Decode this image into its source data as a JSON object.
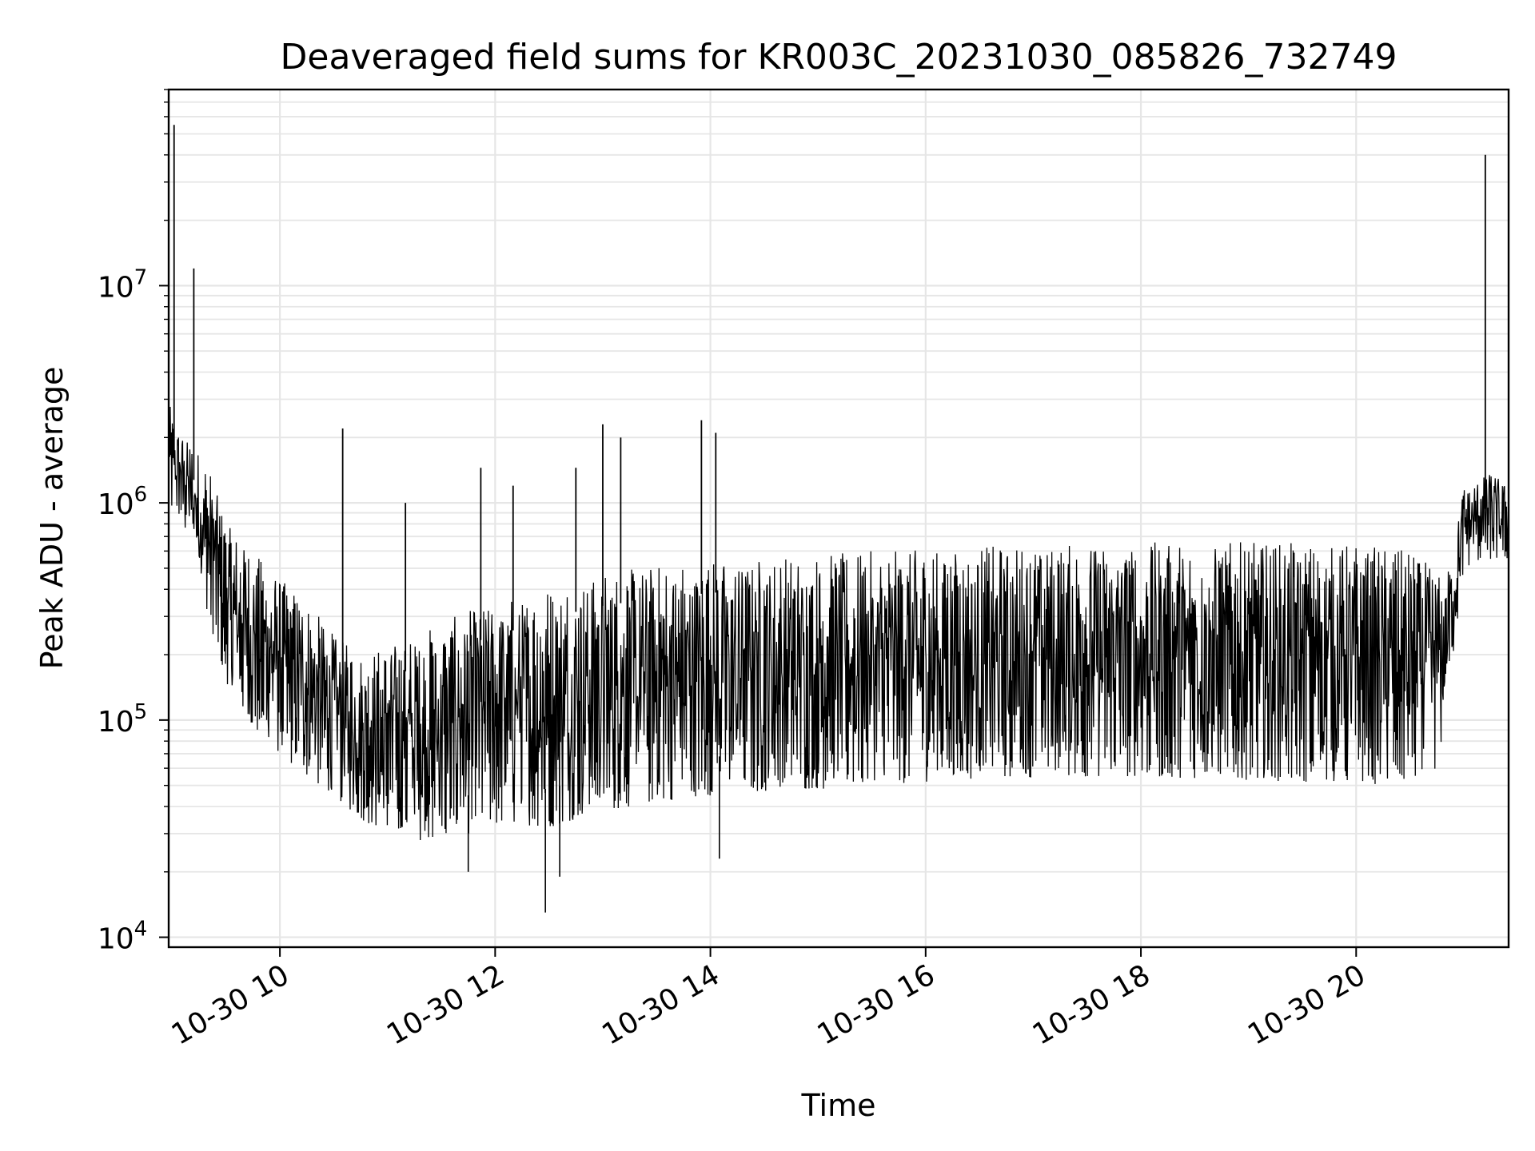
{
  "chart_data": {
    "type": "line",
    "title": "Deaveraged field sums for KR003C_20231030_085826_732749",
    "xlabel": "Time",
    "ylabel": "Peak ADU - average",
    "yscale": "log",
    "ylim": [
      9000,
      80000000
    ],
    "xlim": [
      "2023-10-30 08:58",
      "2023-10-30 21:25"
    ],
    "grid": true,
    "line_color": "#000000",
    "x_ticks": [
      {
        "t": "2023-10-30 10:00",
        "label": "10-30 10"
      },
      {
        "t": "2023-10-30 12:00",
        "label": "10-30 12"
      },
      {
        "t": "2023-10-30 14:00",
        "label": "10-30 14"
      },
      {
        "t": "2023-10-30 16:00",
        "label": "10-30 16"
      },
      {
        "t": "2023-10-30 18:00",
        "label": "10-30 18"
      },
      {
        "t": "2023-10-30 20:00",
        "label": "10-30 20"
      }
    ],
    "y_ticks": [
      {
        "value": 10000,
        "base": "10",
        "exp": "4"
      },
      {
        "value": 100000,
        "base": "10",
        "exp": "5"
      },
      {
        "value": 1000000,
        "base": "10",
        "exp": "6"
      },
      {
        "value": 10000000,
        "base": "10",
        "exp": "7"
      }
    ],
    "series": [
      {
        "envelope_note_removed": true,
        "x": [
          "2023-10-30 08:58",
          "2023-10-30 09:00",
          "2023-10-30 09:03",
          "2023-10-30 09:08",
          "2023-10-30 09:15",
          "2023-10-30 09:20",
          "2023-10-30 09:30",
          "2023-10-30 09:45",
          "2023-10-30 10:00",
          "2023-10-30 10:15",
          "2023-10-30 10:30",
          "2023-10-30 10:45",
          "2023-10-30 11:00",
          "2023-10-30 11:15",
          "2023-10-30 11:30",
          "2023-10-30 11:45",
          "2023-10-30 12:00",
          "2023-10-30 12:15",
          "2023-10-30 12:30",
          "2023-10-30 12:45",
          "2023-10-30 13:00",
          "2023-10-30 13:30",
          "2023-10-30 14:00",
          "2023-10-30 14:30",
          "2023-10-30 15:00",
          "2023-10-30 15:30",
          "2023-10-30 16:00",
          "2023-10-30 16:30",
          "2023-10-30 17:00",
          "2023-10-30 17:30",
          "2023-10-30 18:00",
          "2023-10-30 18:30",
          "2023-10-30 19:00",
          "2023-10-30 19:30",
          "2023-10-30 20:00",
          "2023-10-30 20:30",
          "2023-10-30 20:45",
          "2023-10-30 20:50",
          "2023-10-30 21:00",
          "2023-10-30 21:10",
          "2023-10-30 21:15",
          "2023-10-30 21:25"
        ],
        "y_low": [
          1000000,
          900000,
          900000,
          700000,
          500000,
          300000,
          150000,
          90000,
          70000,
          55000,
          45000,
          35000,
          30000,
          28000,
          28000,
          30000,
          32000,
          33000,
          32000,
          35000,
          38000,
          42000,
          45000,
          47000,
          48000,
          50000,
          52000,
          53000,
          54000,
          55000,
          55000,
          54000,
          53000,
          52000,
          50000,
          52000,
          60000,
          100000,
          500000,
          550000,
          550000,
          550000
        ],
        "y_high": [
          3000000,
          2500000,
          2200000,
          2000000,
          1700000,
          1500000,
          800000,
          600000,
          450000,
          350000,
          250000,
          200000,
          220000,
          250000,
          280000,
          320000,
          350000,
          380000,
          420000,
          450000,
          480000,
          520000,
          550000,
          570000,
          580000,
          600000,
          620000,
          630000,
          640000,
          650000,
          660000,
          660000,
          660000,
          650000,
          650000,
          600000,
          500000,
          450000,
          1200000,
          1300000,
          1400000,
          1200000
        ]
      }
    ],
    "spikes": [
      {
        "t": "2023-10-30 09:01",
        "value": 55000000
      },
      {
        "t": "2023-10-30 09:12",
        "value": 12000000
      },
      {
        "t": "2023-10-30 10:35",
        "value": 2200000
      },
      {
        "t": "2023-10-30 11:10",
        "value": 1000000
      },
      {
        "t": "2023-10-30 11:52",
        "value": 1450000
      },
      {
        "t": "2023-10-30 12:10",
        "value": 1200000
      },
      {
        "t": "2023-10-30 12:45",
        "value": 1450000
      },
      {
        "t": "2023-10-30 13:00",
        "value": 2300000
      },
      {
        "t": "2023-10-30 13:10",
        "value": 2000000
      },
      {
        "t": "2023-10-30 13:55",
        "value": 2400000
      },
      {
        "t": "2023-10-30 14:03",
        "value": 2100000
      },
      {
        "t": "2023-10-30 21:12",
        "value": 40000000
      }
    ],
    "dips": [
      {
        "t": "2023-10-30 12:28",
        "value": 13000
      },
      {
        "t": "2023-10-30 12:36",
        "value": 19000
      },
      {
        "t": "2023-10-30 14:05",
        "value": 23000
      },
      {
        "t": "2023-10-30 11:45",
        "value": 20000
      }
    ]
  }
}
